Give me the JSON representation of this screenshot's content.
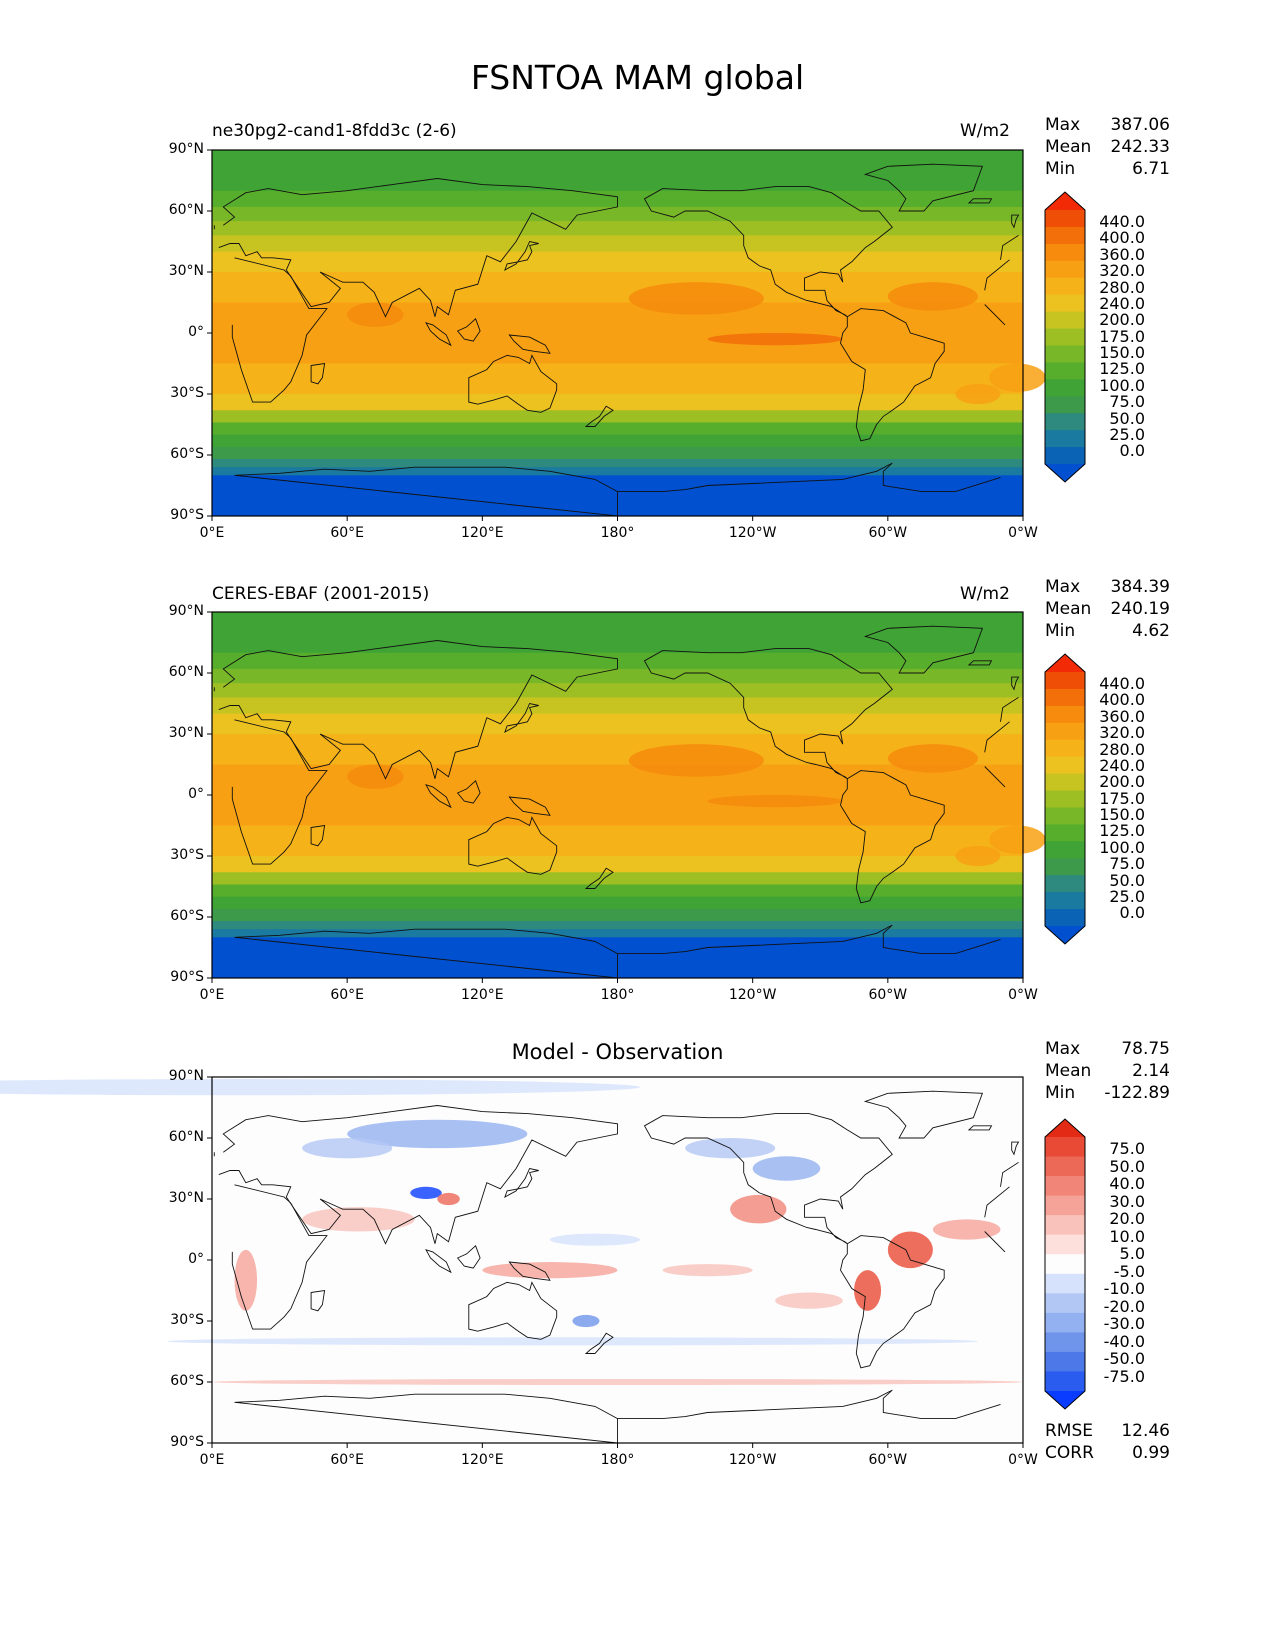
{
  "figure": {
    "title": "FSNTOA MAM global"
  },
  "colors": {
    "field": [
      "#0050d0",
      "#0a63b4",
      "#1a7aa0",
      "#2e8a7e",
      "#3d9a4a",
      "#3fa335",
      "#57ad2c",
      "#78b828",
      "#9ebf24",
      "#c7c422",
      "#ecc221",
      "#f6b219",
      "#f8a013",
      "#f68b0d",
      "#f26f0a",
      "#ee4e06",
      "#f22a05"
    ],
    "diff": [
      "#0a3cff",
      "#2a5cf0",
      "#4c78e8",
      "#6f95ea",
      "#93b0f0",
      "#b3c7f5",
      "#d6e2fb",
      "#fdfdfd",
      "#fde0dc",
      "#f9c2ba",
      "#f5a399",
      "#f18678",
      "#ec6857",
      "#e84a35",
      "#e22a14"
    ]
  },
  "chart_data": [
    {
      "type": "heatmap",
      "panel_label": "ne30pg2-cand1-8fdd3c (2-6)",
      "units": "W/m2",
      "stats": {
        "max_label": "Max",
        "max": "387.06",
        "mean_label": "Mean",
        "mean": "242.33",
        "min_label": "Min",
        "min": "6.71"
      },
      "x_ticks": [
        "0°E",
        "60°E",
        "120°E",
        "180°",
        "120°W",
        "60°W",
        "0°W"
      ],
      "y_ticks": [
        "90°N",
        "60°N",
        "30°N",
        "0°",
        "30°S",
        "60°S",
        "90°S"
      ],
      "colorbar_levels": [
        "440.0",
        "400.0",
        "360.0",
        "320.0",
        "280.0",
        "240.0",
        "200.0",
        "175.0",
        "150.0",
        "125.0",
        "100.0",
        "75.0",
        "50.0",
        "25.0",
        "0.0"
      ],
      "colorbar_extend": "both",
      "projection": "PlateCarree centered at 180°"
    },
    {
      "type": "heatmap",
      "panel_label": "CERES-EBAF (2001-2015)",
      "units": "W/m2",
      "stats": {
        "max_label": "Max",
        "max": "384.39",
        "mean_label": "Mean",
        "mean": "240.19",
        "min_label": "Min",
        "min": "4.62"
      },
      "x_ticks": [
        "0°E",
        "60°E",
        "120°E",
        "180°",
        "120°W",
        "60°W",
        "0°W"
      ],
      "y_ticks": [
        "90°N",
        "60°N",
        "30°N",
        "0°",
        "30°S",
        "60°S",
        "90°S"
      ],
      "colorbar_levels": [
        "440.0",
        "400.0",
        "360.0",
        "320.0",
        "280.0",
        "240.0",
        "200.0",
        "175.0",
        "150.0",
        "125.0",
        "100.0",
        "75.0",
        "50.0",
        "25.0",
        "0.0"
      ],
      "colorbar_extend": "both",
      "projection": "PlateCarree centered at 180°"
    },
    {
      "type": "heatmap",
      "title": "Model - Observation",
      "stats": {
        "max_label": "Max",
        "max": "78.75",
        "mean_label": "Mean",
        "mean": "2.14",
        "min_label": "Min",
        "min": "-122.89"
      },
      "x_ticks": [
        "0°E",
        "60°E",
        "120°E",
        "180°",
        "120°W",
        "60°W",
        "0°W"
      ],
      "y_ticks": [
        "90°N",
        "60°N",
        "30°N",
        "0°",
        "30°S",
        "60°S",
        "90°S"
      ],
      "colorbar_levels": [
        "75.0",
        "50.0",
        "40.0",
        "30.0",
        "20.0",
        "10.0",
        "5.0",
        "-5.0",
        "-10.0",
        "-20.0",
        "-30.0",
        "-40.0",
        "-50.0",
        "-75.0"
      ],
      "colorbar_extend": "both",
      "metrics": {
        "rmse_label": "RMSE",
        "rmse": "12.46",
        "corr_label": "CORR",
        "corr": "0.99"
      },
      "projection": "PlateCarree centered at 180°"
    }
  ]
}
